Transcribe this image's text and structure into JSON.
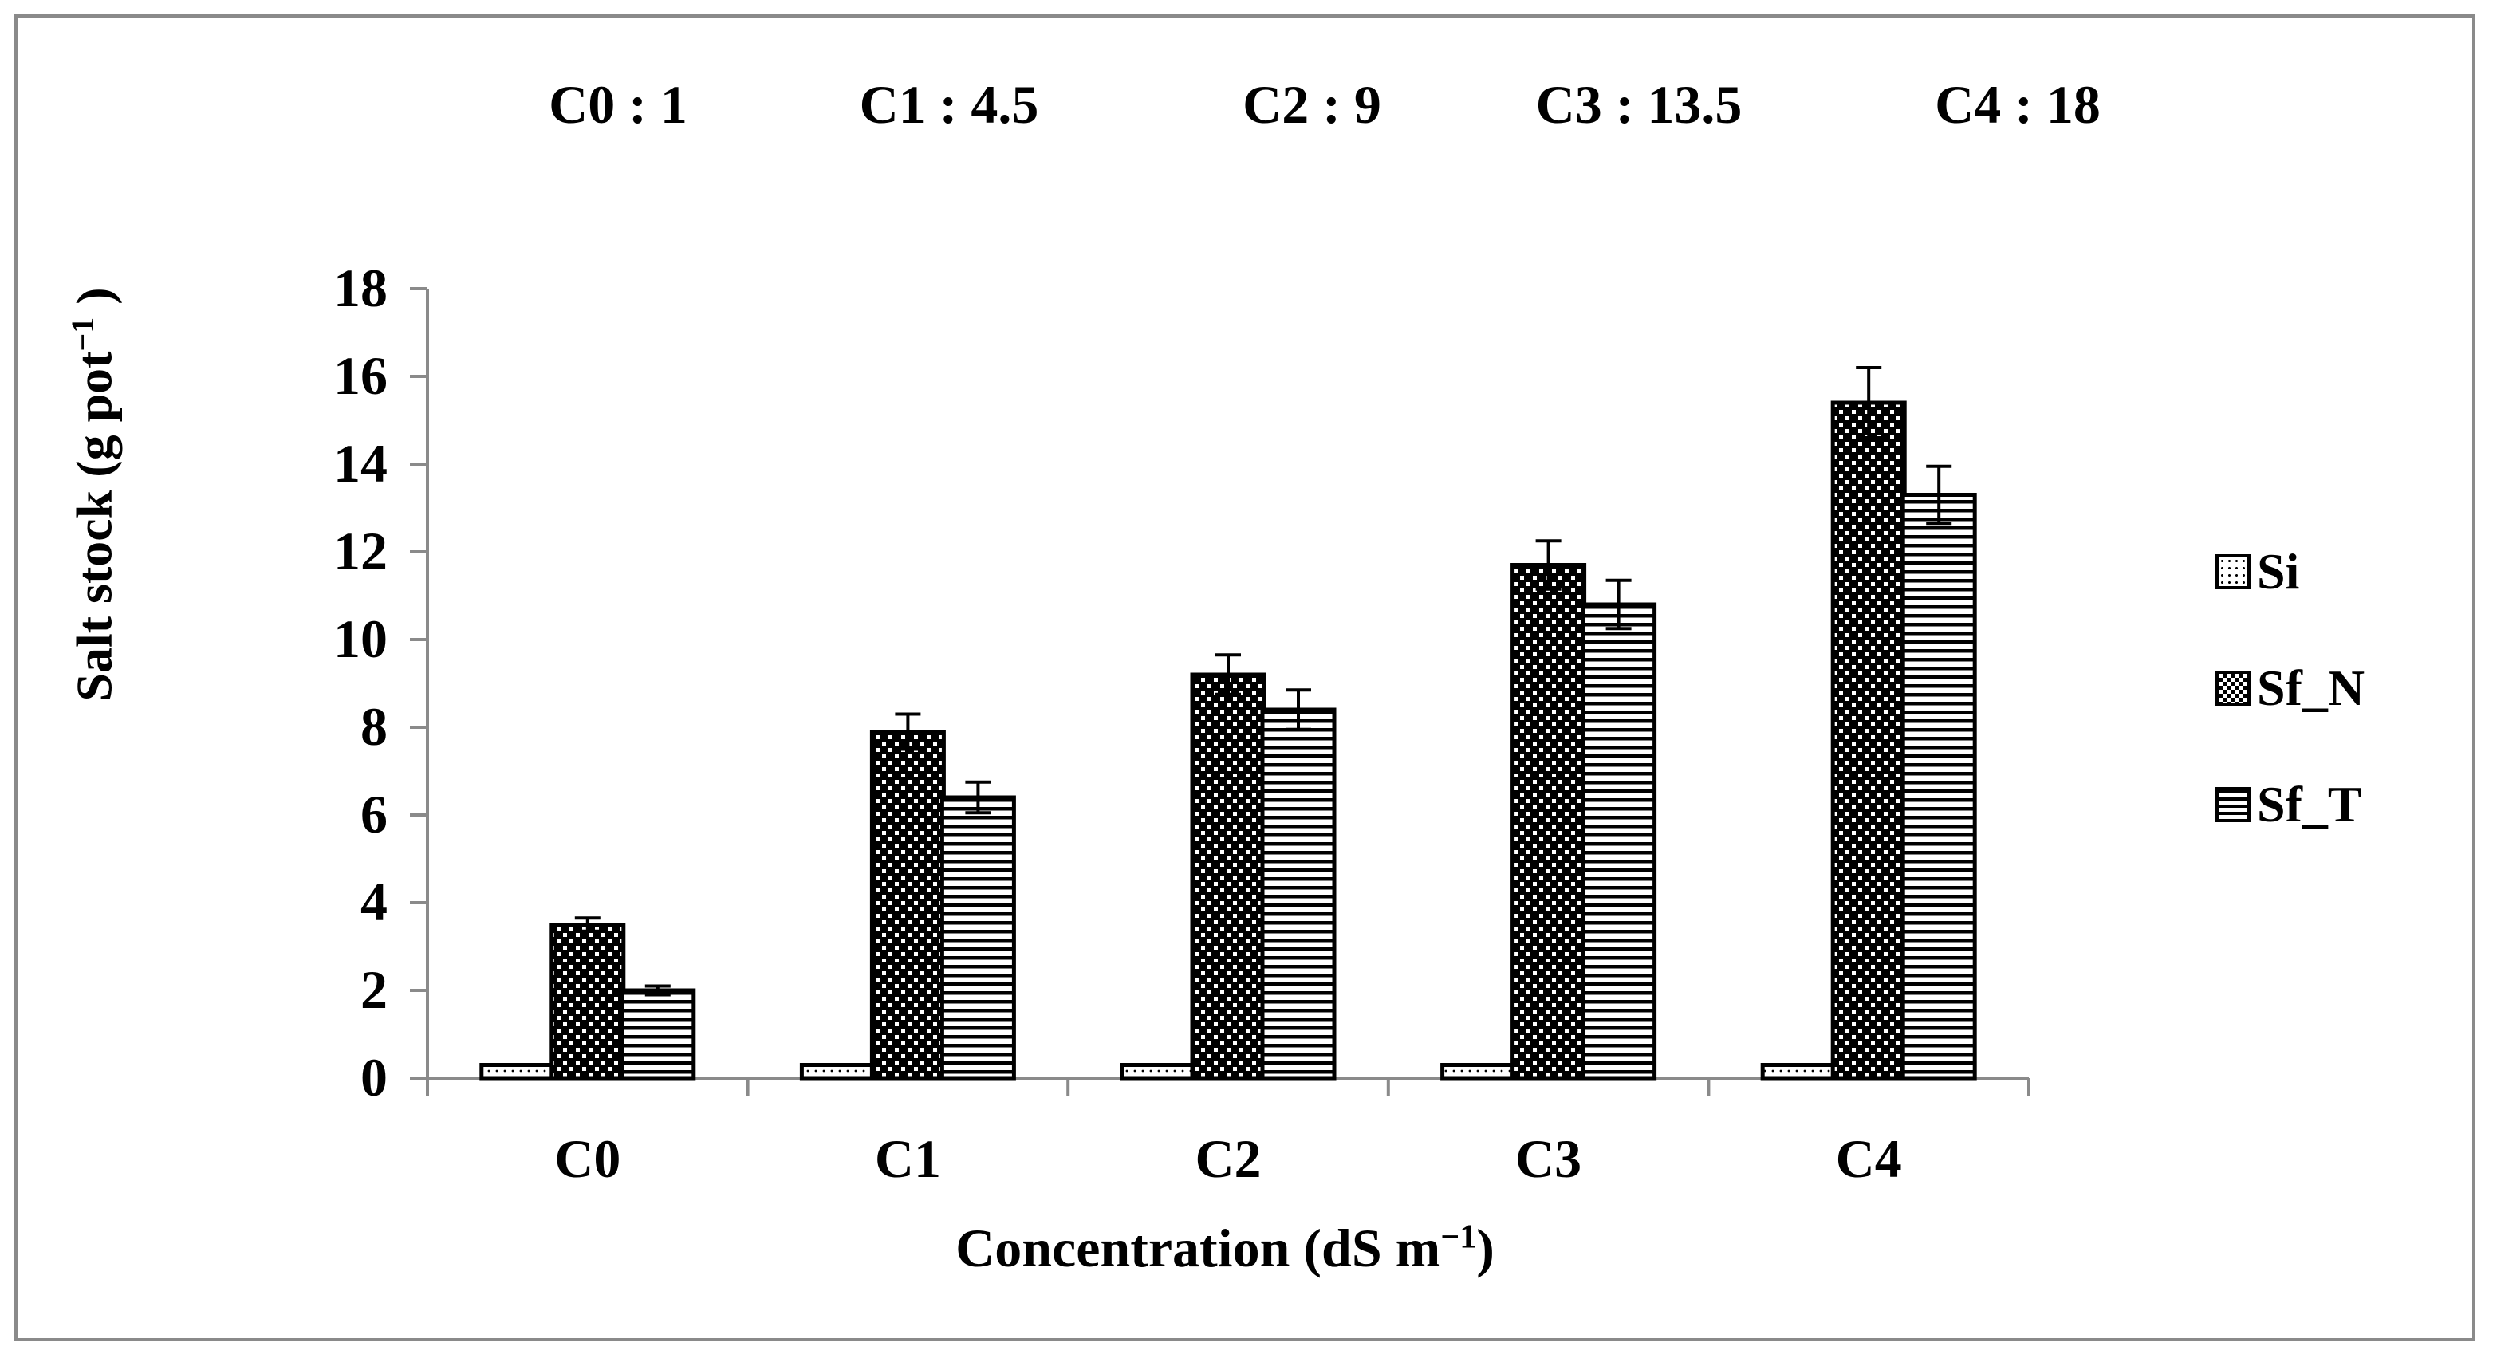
{
  "chart_data": {
    "type": "bar",
    "categories": [
      "C0",
      "C1",
      "C2",
      "C3",
      "C4"
    ],
    "concentration_labels": [
      "C0 : 1",
      "C1 : 4.5",
      "C2 : 9",
      "C3 : 13.5",
      "C4 : 18"
    ],
    "series": [
      {
        "name": "Si",
        "pattern": "dotted",
        "values": [
          0.3,
          0.3,
          0.3,
          0.3,
          0.3
        ],
        "errors": [
          0,
          0,
          0,
          0,
          0
        ]
      },
      {
        "name": "Sf_N",
        "pattern": "checker",
        "values": [
          3.5,
          7.9,
          9.2,
          11.7,
          15.4
        ],
        "errors": [
          0.15,
          0.4,
          0.45,
          0.55,
          0.8
        ]
      },
      {
        "name": "Sf_T",
        "pattern": "horizontal-stripes",
        "values": [
          2.0,
          6.4,
          8.4,
          10.8,
          13.3
        ],
        "errors": [
          0.1,
          0.35,
          0.45,
          0.55,
          0.65
        ]
      }
    ],
    "yticks": [
      0,
      2,
      4,
      6,
      8,
      10,
      12,
      14,
      16,
      18
    ],
    "ylim": [
      0,
      18
    ],
    "xlabel_main": "Concentration (dS m",
    "xlabel_sup": "−1",
    "xlabel_end": ")",
    "ylabel_main": "Salt stock (g pot",
    "ylabel_sup": "−1",
    "ylabel_end": " )",
    "legend_position": "right"
  }
}
